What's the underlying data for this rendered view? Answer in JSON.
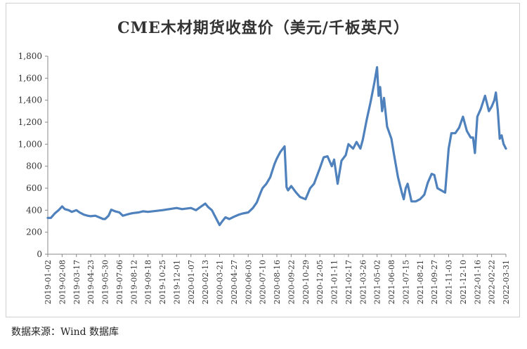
{
  "chart_data": {
    "type": "line",
    "title": "CME木材期货收盘价（美元/千板英尺）",
    "xlabel": "",
    "ylabel": "",
    "ylim": [
      0,
      1800
    ],
    "y_ticks": [
      "0",
      "200",
      "400",
      "600",
      "800",
      "1,000",
      "1,200",
      "1,400",
      "1,600",
      "1,800"
    ],
    "grid": false,
    "legend": "none",
    "line_color": "#4f81bd",
    "x_ticks": [
      "2019-01-02",
      "2019-02-08",
      "2019-03-17",
      "2019-04-23",
      "2019-05-30",
      "2019-07-06",
      "2019-08-12",
      "2019-09-18",
      "2019-10-25",
      "2019-12-01",
      "2020-01-07",
      "2020-02-13",
      "2020-03-21",
      "2020-04-27",
      "2020-06-03",
      "2020-07-10",
      "2020-08-16",
      "2020-09-22",
      "2020-10-29",
      "2020-12-05",
      "2021-01-11",
      "2021-02-17",
      "2021-03-26",
      "2021-05-02",
      "2021-06-08",
      "2021-07-15",
      "2021-08-21",
      "2021-09-27",
      "2021-11-03",
      "2021-12-10",
      "2022-01-16",
      "2022-02-22",
      "2022-03-31"
    ],
    "series": [
      {
        "x": [
          "2019-01-02",
          "2019-01-10",
          "2019-01-20",
          "2019-01-30",
          "2019-02-08",
          "2019-02-15",
          "2019-02-25",
          "2019-03-05",
          "2019-03-17",
          "2019-03-25",
          "2019-04-05",
          "2019-04-15",
          "2019-04-23",
          "2019-05-05",
          "2019-05-15",
          "2019-05-25",
          "2019-05-30",
          "2019-06-08",
          "2019-06-15",
          "2019-06-25",
          "2019-07-06",
          "2019-07-15",
          "2019-07-25",
          "2019-08-05",
          "2019-08-12",
          "2019-08-25",
          "2019-09-05",
          "2019-09-18",
          "2019-10-25",
          "2019-12-01",
          "2019-12-15",
          "2020-01-07",
          "2020-01-20",
          "2020-02-01",
          "2020-02-13",
          "2020-02-20",
          "2020-03-01",
          "2020-03-10",
          "2020-03-21",
          "2020-03-28",
          "2020-04-05",
          "2020-04-15",
          "2020-04-27",
          "2020-05-10",
          "2020-05-20",
          "2020-06-03",
          "2020-06-15",
          "2020-06-25",
          "2020-07-05",
          "2020-07-10",
          "2020-07-20",
          "2020-07-30",
          "2020-08-10",
          "2020-08-16",
          "2020-08-25",
          "2020-09-05",
          "2020-09-10",
          "2020-09-14",
          "2020-09-22",
          "2020-10-05",
          "2020-10-15",
          "2020-10-29",
          "2020-11-10",
          "2020-11-20",
          "2020-12-05",
          "2020-12-15",
          "2020-12-25",
          "2021-01-05",
          "2021-01-11",
          "2021-01-20",
          "2021-01-30",
          "2021-02-10",
          "2021-02-17",
          "2021-03-01",
          "2021-03-10",
          "2021-03-20",
          "2021-03-26",
          "2021-04-05",
          "2021-04-15",
          "2021-04-25",
          "2021-05-02",
          "2021-05-06",
          "2021-05-10",
          "2021-05-15",
          "2021-05-20",
          "2021-05-28",
          "2021-06-08",
          "2021-06-15",
          "2021-06-25",
          "2021-07-05",
          "2021-07-10",
          "2021-07-15",
          "2021-07-20",
          "2021-07-30",
          "2021-08-10",
          "2021-08-21",
          "2021-09-01",
          "2021-09-10",
          "2021-09-20",
          "2021-09-27",
          "2021-10-05",
          "2021-10-15",
          "2021-10-25",
          "2021-11-03",
          "2021-11-10",
          "2021-11-20",
          "2021-11-30",
          "2021-12-10",
          "2021-12-20",
          "2021-12-30",
          "2022-01-05",
          "2022-01-10",
          "2022-01-16",
          "2022-01-25",
          "2022-02-05",
          "2022-02-15",
          "2022-02-22",
          "2022-03-01",
          "2022-03-05",
          "2022-03-10",
          "2022-03-15",
          "2022-03-20",
          "2022-03-25",
          "2022-03-31"
        ],
        "values": [
          330,
          330,
          370,
          400,
          435,
          410,
          400,
          385,
          400,
          380,
          360,
          350,
          345,
          350,
          335,
          320,
          320,
          350,
          405,
          390,
          380,
          350,
          360,
          370,
          375,
          380,
          390,
          385,
          400,
          420,
          410,
          420,
          400,
          430,
          460,
          430,
          400,
          340,
          265,
          300,
          335,
          320,
          340,
          360,
          370,
          380,
          420,
          470,
          560,
          600,
          640,
          700,
          820,
          870,
          930,
          980,
          610,
          580,
          620,
          560,
          520,
          500,
          600,
          640,
          780,
          880,
          890,
          800,
          860,
          640,
          850,
          900,
          1000,
          960,
          1020,
          960,
          1040,
          1220,
          1380,
          1560,
          1700,
          1440,
          1520,
          1300,
          1420,
          1160,
          1050,
          900,
          700,
          560,
          500,
          600,
          640,
          480,
          480,
          500,
          540,
          650,
          730,
          720,
          600,
          580,
          560,
          960,
          1100,
          1100,
          1150,
          1250,
          1120,
          1060,
          1060,
          920,
          1250,
          1320,
          1440,
          1300,
          1340,
          1400,
          1470,
          1310,
          1050,
          1080,
          1000,
          960
        ]
      }
    ]
  },
  "footer": {
    "source": "数据来源：Wind 数据库"
  }
}
